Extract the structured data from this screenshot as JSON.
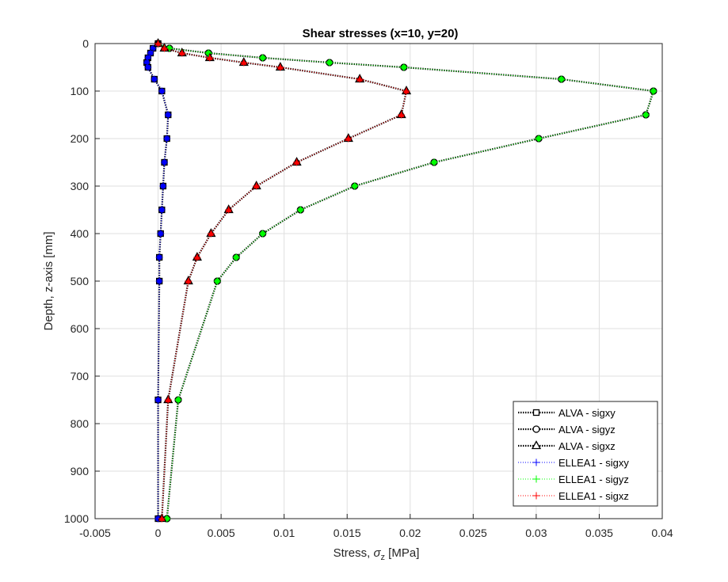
{
  "chart_data": {
    "type": "line",
    "title": "Shear stresses (x=10, y=20)",
    "xlabel": {
      "pre": "Stress, ",
      "sigma": "σ",
      "sub": "z",
      "post": " [MPa]"
    },
    "ylabel": "Depth, z-axis [mm]",
    "xlim": [
      -0.005,
      0.04
    ],
    "ylim": [
      0,
      1000
    ],
    "y_reversed": true,
    "grid": true,
    "legend_position": "bottom-right",
    "x_ticks": [
      -0.005,
      0,
      0.005,
      0.01,
      0.015,
      0.02,
      0.025,
      0.03,
      0.035,
      0.04
    ],
    "x_tick_labels": [
      "-0.005",
      "0",
      "0.005",
      "0.01",
      "0.015",
      "0.02",
      "0.025",
      "0.03",
      "0.035",
      "0.04"
    ],
    "y_ticks": [
      0,
      100,
      200,
      300,
      400,
      500,
      600,
      700,
      800,
      900,
      1000
    ],
    "y_tick_labels": [
      "0",
      "100",
      "200",
      "300",
      "400",
      "500",
      "600",
      "700",
      "800",
      "900",
      "1000"
    ],
    "series": [
      {
        "name": "ALVA - sigxy",
        "marker": "square",
        "color": "#000000",
        "line": "dotted",
        "z": [
          0,
          10,
          20,
          30,
          40,
          50,
          75,
          100,
          150,
          200,
          250,
          300,
          350,
          400,
          450,
          500,
          750,
          1000
        ],
        "x": [
          0,
          -0.0004,
          -0.0006,
          -0.0008,
          -0.0009,
          -0.0008,
          -0.0003,
          0.0003,
          0.0008,
          0.0007,
          0.0005,
          0.0004,
          0.0003,
          0.0002,
          0.0001,
          0.0001,
          0.0,
          0.0
        ]
      },
      {
        "name": "ALVA - sigyz",
        "marker": "circle",
        "color": "#000000",
        "line": "dotted",
        "z": [
          0,
          10,
          20,
          30,
          40,
          50,
          75,
          100,
          150,
          200,
          250,
          300,
          350,
          400,
          450,
          500,
          750,
          1000
        ],
        "x": [
          0,
          0.0009,
          0.004,
          0.0083,
          0.0136,
          0.0195,
          0.032,
          0.0393,
          0.0387,
          0.0302,
          0.0219,
          0.0156,
          0.0113,
          0.0083,
          0.0062,
          0.0047,
          0.0016,
          0.0007
        ]
      },
      {
        "name": "ALVA - sigxz",
        "marker": "triangle",
        "color": "#000000",
        "line": "dotted",
        "z": [
          0,
          10,
          20,
          30,
          40,
          50,
          75,
          100,
          150,
          200,
          250,
          300,
          350,
          400,
          450,
          500,
          750,
          1000
        ],
        "x": [
          0,
          0.0005,
          0.0019,
          0.0041,
          0.0068,
          0.0097,
          0.016,
          0.0197,
          0.0193,
          0.0151,
          0.011,
          0.0078,
          0.0056,
          0.0042,
          0.0031,
          0.0024,
          0.0008,
          0.0003
        ]
      },
      {
        "name": "ELLEA1 - sigxy",
        "marker": "plus",
        "color": "#0000ff",
        "line": "dotted",
        "z": [
          0,
          10,
          20,
          30,
          40,
          50,
          75,
          100,
          150,
          200,
          250,
          300,
          350,
          400,
          450,
          500,
          750,
          1000
        ],
        "x": [
          0,
          -0.0004,
          -0.0006,
          -0.0008,
          -0.0009,
          -0.0008,
          -0.0003,
          0.0003,
          0.0008,
          0.0007,
          0.0005,
          0.0004,
          0.0003,
          0.0002,
          0.0001,
          0.0001,
          0.0,
          0.0
        ]
      },
      {
        "name": "ELLEA1 - sigyz",
        "marker": "plus",
        "color": "#00ff00",
        "line": "dotted",
        "z": [
          0,
          10,
          20,
          30,
          40,
          50,
          75,
          100,
          150,
          200,
          250,
          300,
          350,
          400,
          450,
          500,
          750,
          1000
        ],
        "x": [
          0,
          0.0009,
          0.004,
          0.0083,
          0.0136,
          0.0195,
          0.032,
          0.0393,
          0.0387,
          0.0302,
          0.0219,
          0.0156,
          0.0113,
          0.0083,
          0.0062,
          0.0047,
          0.0016,
          0.0007
        ]
      },
      {
        "name": "ELLEA1 - sigxz",
        "marker": "plus",
        "color": "#ff0000",
        "line": "dotted",
        "z": [
          0,
          10,
          20,
          30,
          40,
          50,
          75,
          100,
          150,
          200,
          250,
          300,
          350,
          400,
          450,
          500,
          750,
          1000
        ],
        "x": [
          0,
          0.0005,
          0.0019,
          0.0041,
          0.0068,
          0.0097,
          0.016,
          0.0197,
          0.0193,
          0.0151,
          0.011,
          0.0078,
          0.0056,
          0.0042,
          0.0031,
          0.0024,
          0.0008,
          0.0003
        ]
      }
    ]
  },
  "colors": {
    "axis": "#262626",
    "grid": "#dfdfdf",
    "marker_fill_sigxy": "#0000ff",
    "marker_fill_sigyz": "#00ff00",
    "marker_fill_sigxz": "#ff0000"
  }
}
